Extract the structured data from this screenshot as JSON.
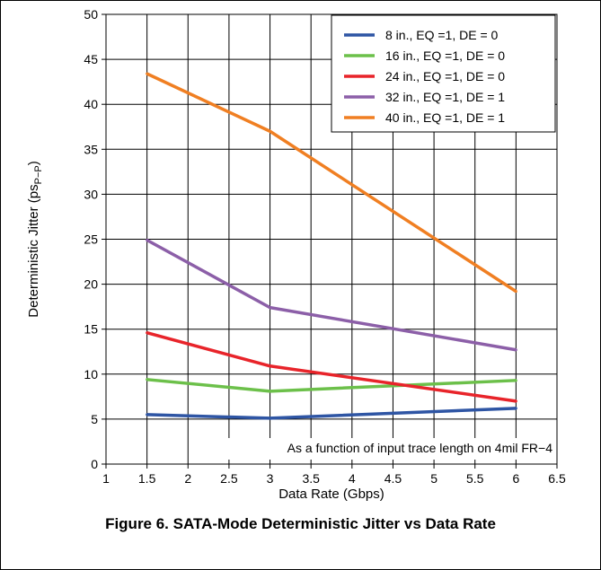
{
  "chart_data": {
    "type": "line",
    "title": "",
    "xlabel": "Data Rate (Gbps)",
    "ylabel": "Deterministic Jitter (ps",
    "ylabel_sub": "P−P",
    "ylabel_close": ")",
    "xlim": [
      1,
      6.5
    ],
    "ylim": [
      0,
      50
    ],
    "x_ticks": [
      "1",
      "1.5",
      "2",
      "2.5",
      "3",
      "3.5",
      "4",
      "4.5",
      "5",
      "5.5",
      "6",
      "6.5"
    ],
    "y_ticks": [
      "0",
      "5",
      "10",
      "15",
      "20",
      "25",
      "30",
      "35",
      "40",
      "45",
      "50"
    ],
    "grid": true,
    "legend_position": "top-right",
    "annotation": "As a function of input trace length on 4mil FR−4",
    "x": [
      1.5,
      3,
      6
    ],
    "series": [
      {
        "name": "8 in., EQ =1, DE = 0",
        "color": "#2e55a4",
        "values": [
          5.5,
          5.1,
          6.2
        ]
      },
      {
        "name": "16 in., EQ =1, DE = 0",
        "color": "#6cc04a",
        "values": [
          9.4,
          8.1,
          9.3
        ]
      },
      {
        "name": "24 in., EQ =1, DE = 0",
        "color": "#e8242a",
        "values": [
          14.6,
          10.9,
          7.0
        ]
      },
      {
        "name": "32 in., EQ =1, DE = 1",
        "color": "#8c5fa8",
        "values": [
          24.9,
          17.4,
          12.7
        ]
      },
      {
        "name": "40 in., EQ =1, DE = 1",
        "color": "#f07f22",
        "values": [
          43.4,
          37.0,
          19.2
        ]
      }
    ]
  },
  "caption": "Figure 6. SATA-Mode Deterministic Jitter vs Data Rate"
}
